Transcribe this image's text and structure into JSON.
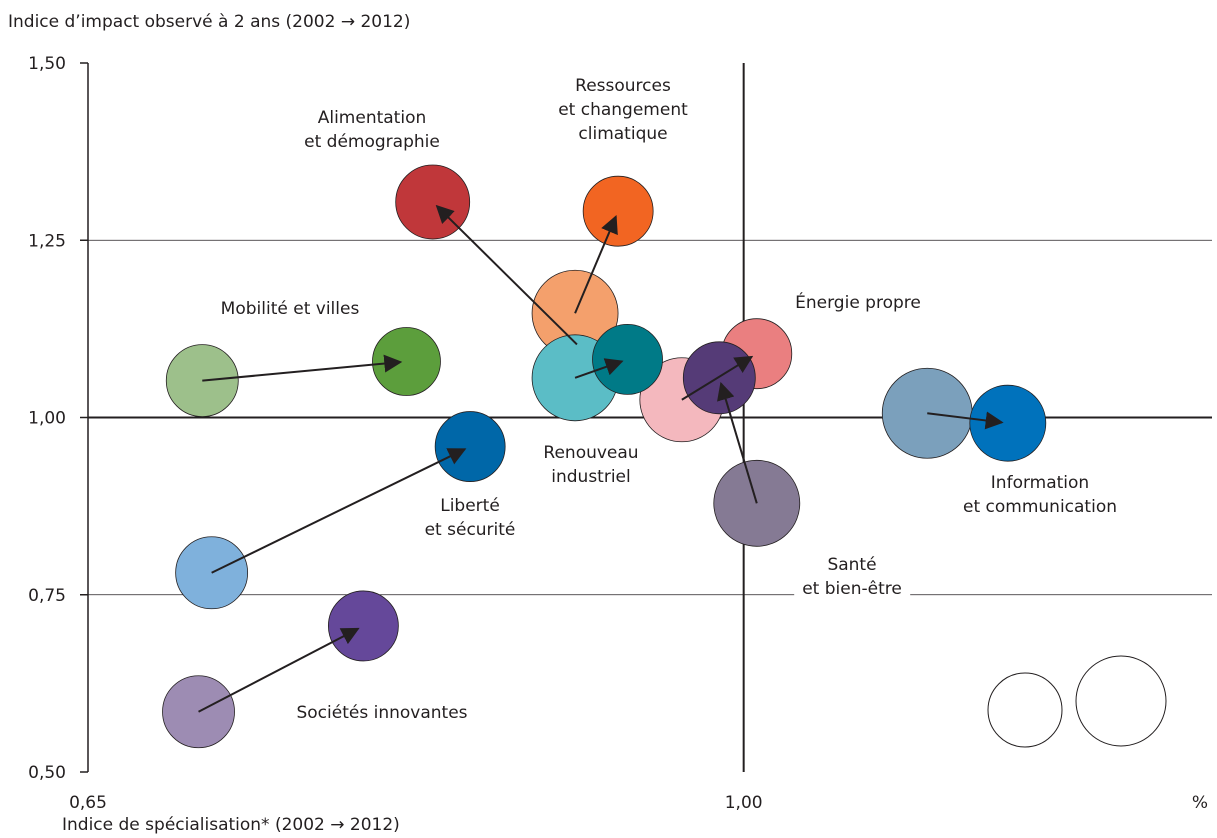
{
  "chart_data": {
    "type": "bubble-arrow",
    "y_label": "Indice d’impact observé à 2 ans (2002 → 2012)",
    "x_label": "Indice de spécialisation* (2002 → 2012)",
    "x_unit": "%",
    "xlim": [
      0.65,
      1.25
    ],
    "xticks": [
      {
        "value": 0.65,
        "label": "0,65"
      },
      {
        "value": 1,
        "label": "1,00"
      }
    ],
    "ylim": [
      0.5,
      1.5
    ],
    "yticks": [
      {
        "value": 0.5,
        "label": "0,50"
      },
      {
        "value": 0.75,
        "label": "0,75"
      },
      {
        "value": 1,
        "label": "1,00"
      },
      {
        "value": 1.25,
        "label": "1,25"
      },
      {
        "value": 1.5,
        "label": "1,50"
      }
    ],
    "grid": true,
    "reference_lines": {
      "x": 1,
      "y": 1
    },
    "series": [
      {
        "name": "Mobilité et villes",
        "colors": [
          "#9dc08b",
          "#5c9e3c"
        ],
        "x": [
          0.711,
          0.82
        ],
        "values": [
          1.052,
          1.079
        ],
        "sizes": [
          36,
          34
        ]
      },
      {
        "name": "Alimentation\net démographie",
        "colors": [
          "#d38d8d",
          "#c0373a"
        ],
        "x": [
          0.911,
          0.834
        ],
        "values": [
          1.103,
          1.304
        ],
        "sizes": [
          30,
          37
        ]
      },
      {
        "name": "Ressources\net changement\nclimatique",
        "colors": [
          "#f4a06c",
          "#f26522"
        ],
        "x": [
          0.91,
          0.933
        ],
        "values": [
          1.147,
          1.291
        ],
        "sizes": [
          43,
          35
        ]
      },
      {
        "name": "Renouveau\nindustriel",
        "colors": [
          "#5bbdc6",
          "#007a87"
        ],
        "x": [
          0.91,
          0.938
        ],
        "values": [
          1.056,
          1.082
        ],
        "sizes": [
          43,
          35
        ]
      },
      {
        "name": "Énergie propre",
        "colors": [
          "#f4b8be",
          "#ea7f80"
        ],
        "x": [
          0.967,
          1.007
        ],
        "values": [
          1.025,
          1.09
        ],
        "sizes": [
          42,
          35
        ]
      },
      {
        "name": "Santé\net bien-être",
        "colors": [
          "#857a94",
          "#553b77"
        ],
        "x": [
          1.007,
          0.987
        ],
        "values": [
          0.879,
          1.056
        ],
        "sizes": [
          43,
          36
        ]
      },
      {
        "name": "Information\net communication",
        "colors": [
          "#7ba0bc",
          "#0072bc"
        ],
        "x": [
          1.098,
          1.141
        ],
        "values": [
          1.006,
          0.992
        ],
        "sizes": [
          45,
          38
        ]
      },
      {
        "name": "Liberté\net sécurité",
        "colors": [
          "#7fb1dc",
          "#0067a8"
        ],
        "x": [
          0.716,
          0.854
        ],
        "values": [
          0.781,
          0.959
        ],
        "sizes": [
          36,
          35
        ]
      },
      {
        "name": "Sociétés innovantes",
        "colors": [
          "#9d8cb3",
          "#65489a"
        ],
        "x": [
          0.709,
          0.797
        ],
        "values": [
          0.585,
          0.706
        ],
        "sizes": [
          36,
          35
        ]
      }
    ]
  }
}
